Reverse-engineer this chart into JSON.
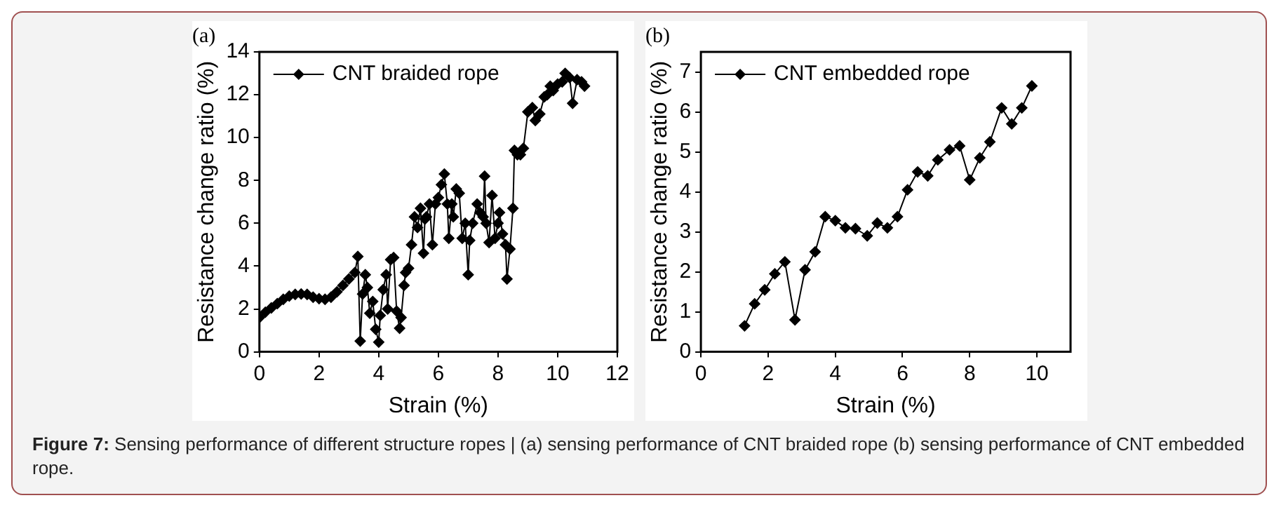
{
  "chart_data": [
    {
      "type": "line",
      "title": "(a)",
      "xlabel": "Strain (%)",
      "ylabel": "Resistance change ratio (%)",
      "xlim": [
        0,
        12
      ],
      "xticks": [
        0,
        2,
        4,
        6,
        8,
        10,
        12
      ],
      "ylim": [
        0,
        14
      ],
      "yticks": [
        0,
        2,
        4,
        6,
        8,
        10,
        12,
        14
      ],
      "grid": false,
      "legend": "top left",
      "marker": "diamond",
      "line_style": "solid",
      "series": [
        {
          "name": "CNT braided rope",
          "color": "#000000",
          "x": [
            0,
            0.2,
            0.4,
            0.6,
            0.8,
            1.0,
            1.2,
            1.4,
            1.6,
            1.8,
            2.0,
            2.2,
            2.4,
            2.6,
            2.8,
            3.0,
            3.2,
            3.3,
            3.38,
            3.46,
            3.55,
            3.62,
            3.7,
            3.8,
            3.9,
            4.0,
            4.05,
            4.15,
            4.25,
            4.3,
            4.4,
            4.5,
            4.6,
            4.7,
            4.75,
            4.85,
            4.9,
            5.0,
            5.1,
            5.2,
            5.3,
            5.4,
            5.5,
            5.55,
            5.6,
            5.7,
            5.8,
            5.9,
            6.0,
            6.1,
            6.2,
            6.3,
            6.35,
            6.45,
            6.5,
            6.6,
            6.7,
            6.8,
            6.9,
            7.0,
            7.05,
            7.15,
            7.3,
            7.4,
            7.5,
            7.55,
            7.6,
            7.7,
            7.8,
            7.9,
            8.0,
            8.05,
            8.15,
            8.25,
            8.3,
            8.4,
            8.5,
            8.55,
            8.65,
            8.75,
            8.85,
            9.0,
            9.15,
            9.25,
            9.4,
            9.55,
            9.65,
            9.75,
            9.85,
            10.0,
            10.15,
            10.25,
            10.4,
            10.5,
            10.65,
            10.8,
            10.9
          ],
          "values": [
            1.6,
            1.85,
            2.05,
            2.25,
            2.45,
            2.6,
            2.68,
            2.7,
            2.68,
            2.55,
            2.48,
            2.45,
            2.55,
            2.8,
            3.1,
            3.4,
            3.7,
            4.45,
            0.5,
            2.7,
            3.6,
            3.0,
            1.8,
            2.35,
            1.05,
            0.45,
            1.7,
            2.9,
            3.6,
            2.0,
            4.3,
            4.4,
            1.9,
            1.1,
            1.6,
            3.1,
            3.7,
            3.9,
            5.0,
            6.3,
            5.8,
            6.7,
            4.6,
            6.2,
            6.3,
            6.9,
            5.0,
            6.9,
            7.2,
            7.8,
            8.3,
            6.9,
            5.3,
            6.9,
            6.3,
            7.6,
            7.4,
            5.3,
            6.0,
            3.6,
            5.2,
            6.0,
            6.9,
            6.5,
            6.3,
            8.2,
            6.0,
            5.1,
            7.3,
            5.3,
            6.0,
            6.5,
            5.5,
            5.0,
            3.4,
            4.8,
            6.7,
            9.4,
            9.2,
            9.2,
            9.5,
            11.2,
            11.4,
            10.8,
            11.1,
            11.9,
            12.0,
            12.4,
            12.2,
            12.5,
            12.6,
            13.0,
            12.8,
            11.6,
            12.7,
            12.6,
            12.4
          ]
        }
      ],
      "annotations": [
        "Figure 7: Sensing performance of different structure ropes | (a) sensing performance of CNT braided rope (b) sensing performance of CNT embedded rope."
      ]
    },
    {
      "type": "line",
      "title": "(b)",
      "xlabel": "Strain (%)",
      "ylabel": "Resistance change ratio (%)",
      "xlim": [
        0,
        11
      ],
      "xticks": [
        0,
        2,
        4,
        6,
        8,
        10
      ],
      "ylim": [
        0,
        7.5
      ],
      "yticks": [
        0,
        1,
        2,
        3,
        4,
        5,
        6,
        7
      ],
      "grid": false,
      "legend": "top left",
      "marker": "diamond",
      "line_style": "solid",
      "series": [
        {
          "name": "CNT embedded rope",
          "color": "#000000",
          "x": [
            1.3,
            1.6,
            1.9,
            2.2,
            2.5,
            2.8,
            3.1,
            3.4,
            3.7,
            4.0,
            4.3,
            4.6,
            4.95,
            5.25,
            5.55,
            5.85,
            6.15,
            6.45,
            6.75,
            7.05,
            7.4,
            7.7,
            8.0,
            8.3,
            8.6,
            8.95,
            9.25,
            9.55,
            9.85
          ],
          "values": [
            0.65,
            1.2,
            1.55,
            1.95,
            2.25,
            0.8,
            2.05,
            2.5,
            3.38,
            3.28,
            3.1,
            3.08,
            2.9,
            3.22,
            3.1,
            3.38,
            4.05,
            4.5,
            4.4,
            4.8,
            5.05,
            5.15,
            4.3,
            4.85,
            5.25,
            6.1,
            5.7,
            6.1,
            6.65
          ]
        }
      ]
    }
  ]
}
